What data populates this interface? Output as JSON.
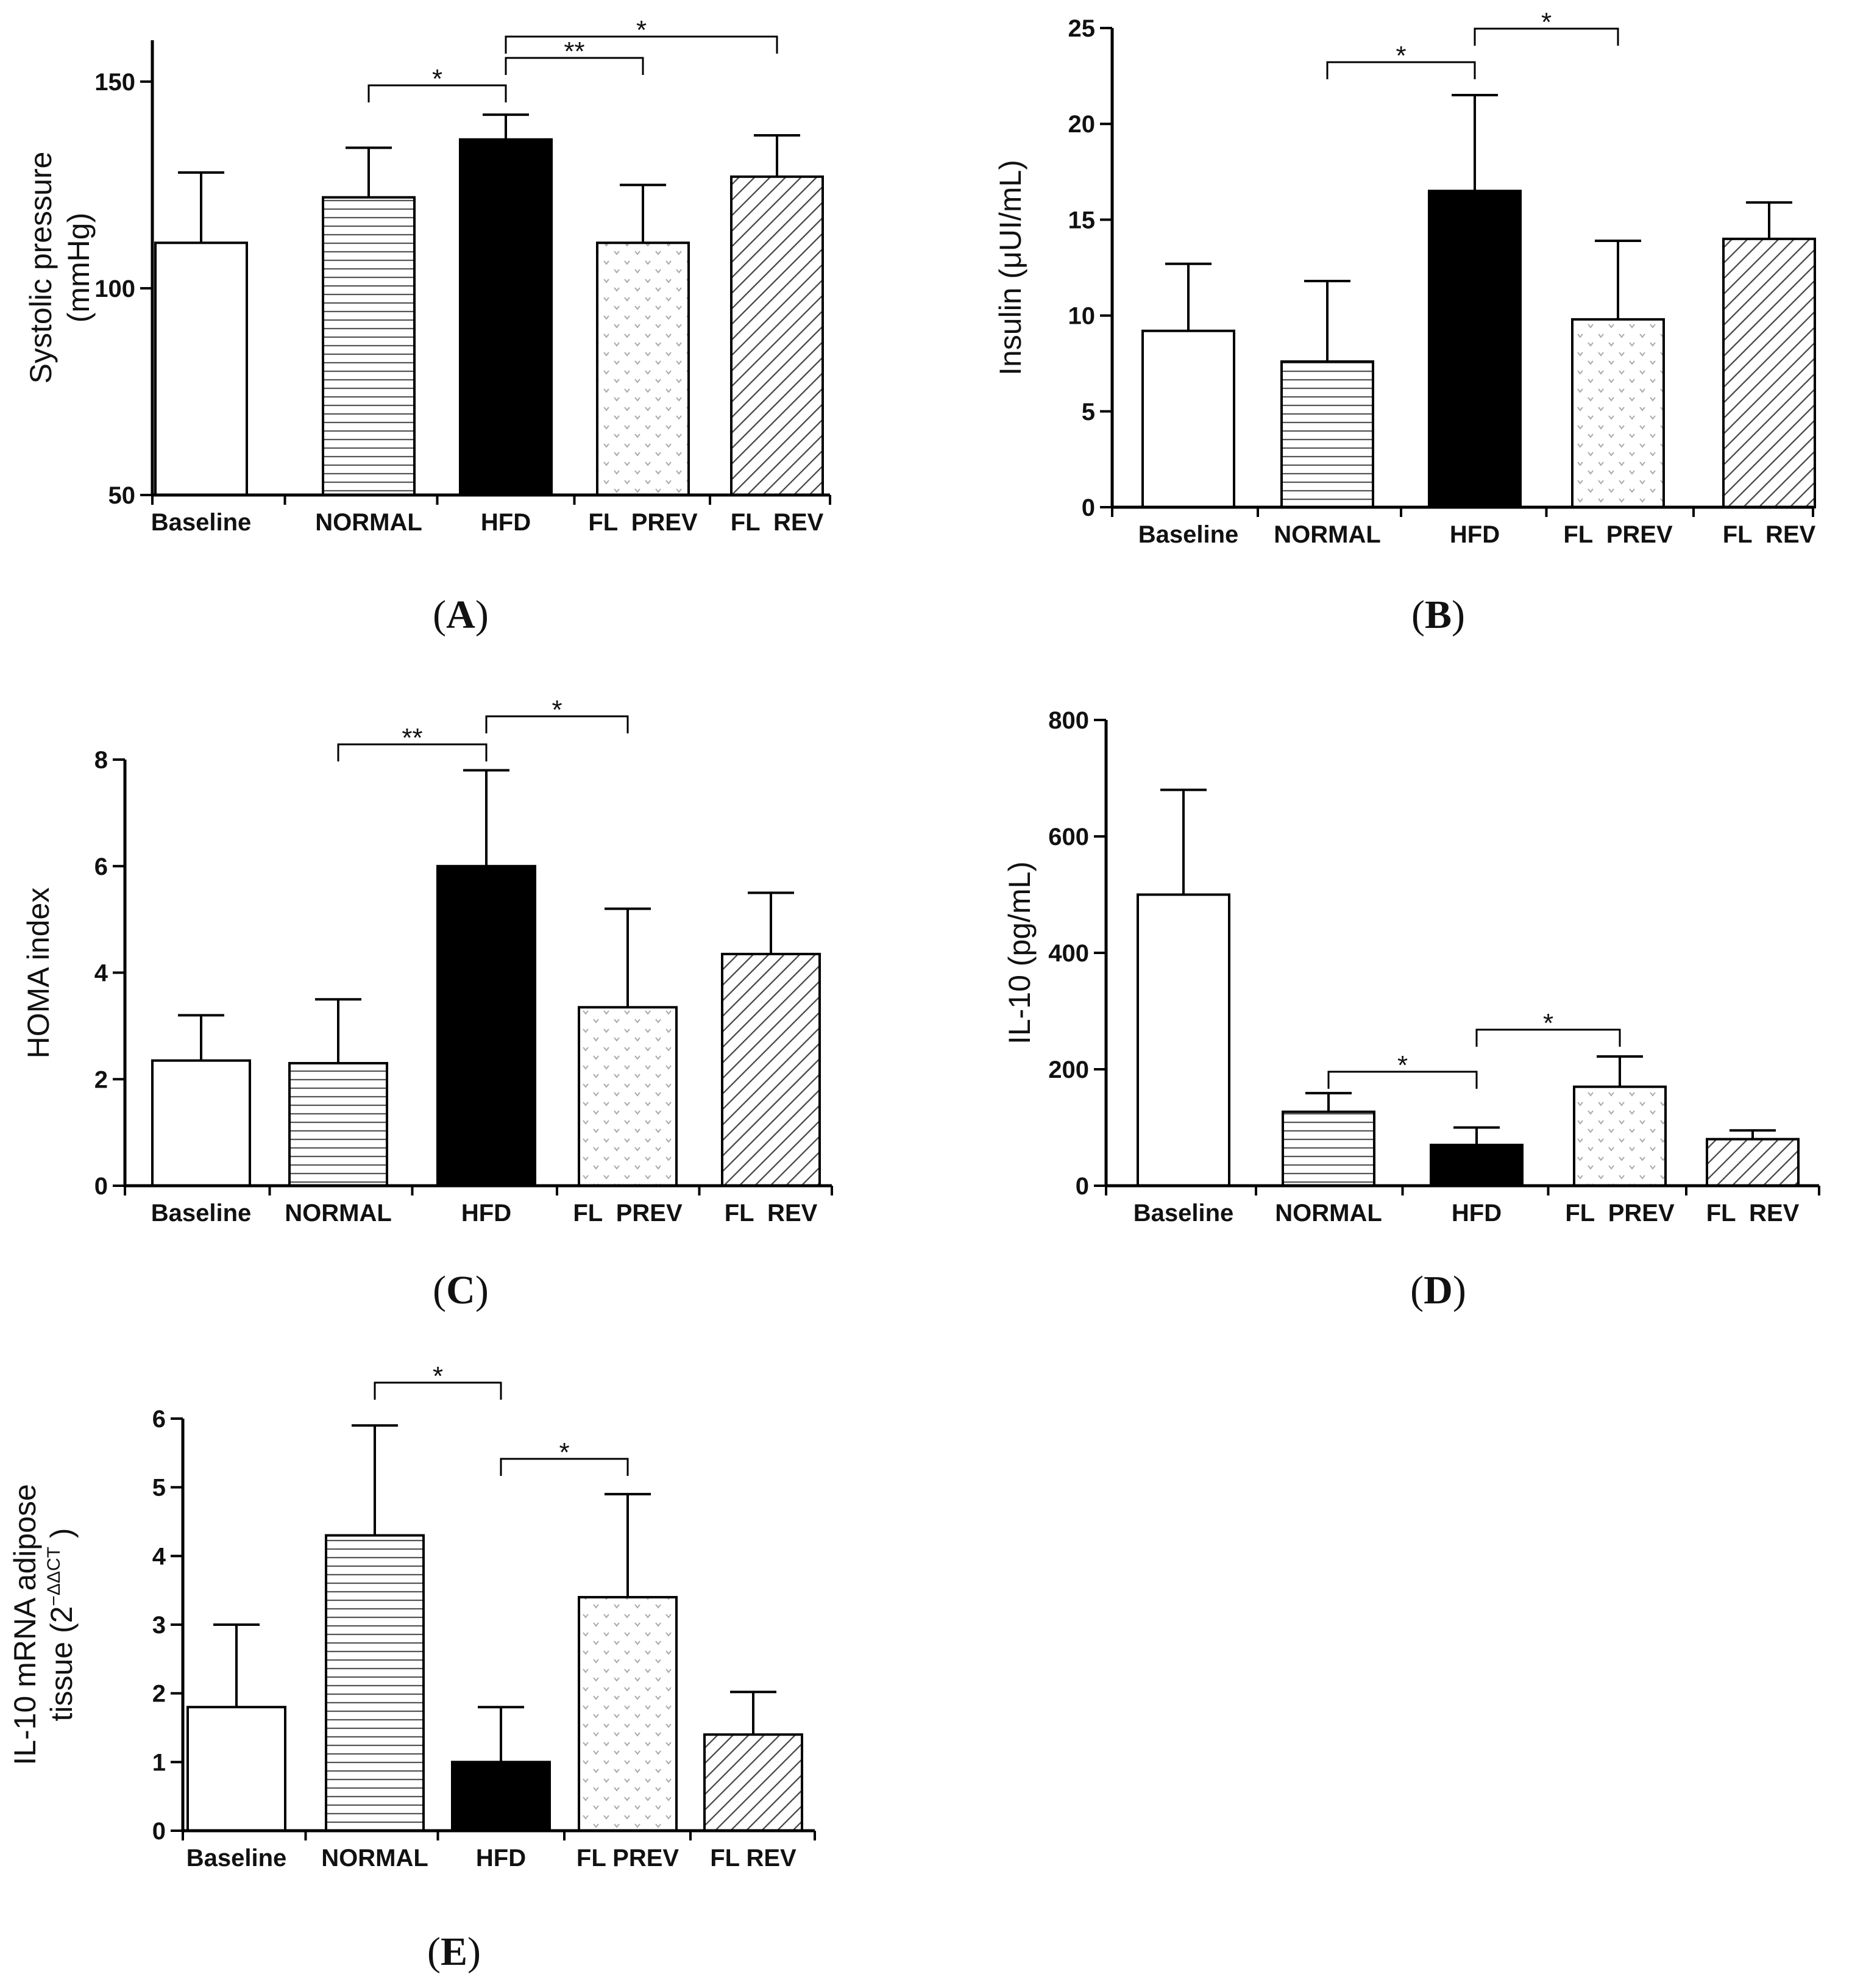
{
  "figure": {
    "categories": [
      "Baseline",
      "NORMAL",
      "HFD",
      "FL  PREV",
      "FL  REV"
    ],
    "patterns": [
      "white",
      "horizontal",
      "solid",
      "dots",
      "diagonal"
    ]
  },
  "chart_data": [
    {
      "panel": "A",
      "panel_label": {
        "open": "(",
        "letter": "A",
        "close": ")"
      },
      "type": "bar",
      "categories": [
        "Baseline",
        "NORMAL",
        "HFD",
        "FL  PREV",
        "FL  REV"
      ],
      "values": [
        111,
        122,
        136,
        111,
        127
      ],
      "errors": [
        17,
        12,
        6,
        14,
        10
      ],
      "ylabel": [
        "Systolic pressure",
        "(mmHg)"
      ],
      "ylim": [
        50,
        160
      ],
      "yticks": [
        50,
        100,
        150
      ],
      "significance": [
        {
          "from": 1,
          "to": 2,
          "label": "*"
        },
        {
          "from": 2,
          "to": 3,
          "label": "**"
        },
        {
          "from": 2,
          "to": 4,
          "label": "*"
        }
      ]
    },
    {
      "panel": "B",
      "panel_label": {
        "open": "(",
        "letter": "B",
        "close": ")"
      },
      "type": "bar",
      "categories": [
        "Baseline",
        "NORMAL",
        "HFD",
        "FL  PREV",
        "FL  REV"
      ],
      "values": [
        9.2,
        7.6,
        16.5,
        9.8,
        14.0
      ],
      "errors": [
        3.5,
        4.2,
        5.0,
        4.1,
        1.9
      ],
      "ylabel": [
        "Insulin (μUI/mL)"
      ],
      "ylim": [
        0,
        25
      ],
      "yticks": [
        0,
        5,
        10,
        15,
        20,
        25
      ],
      "significance": [
        {
          "from": 1,
          "to": 2,
          "label": "*"
        },
        {
          "from": 2,
          "to": 3,
          "label": "*"
        }
      ]
    },
    {
      "panel": "C",
      "panel_label": {
        "open": "(",
        "letter": "C",
        "close": ")"
      },
      "type": "bar",
      "categories": [
        "Baseline",
        "NORMAL",
        "HFD",
        "FL  PREV",
        "FL  REV"
      ],
      "values": [
        2.35,
        2.3,
        6.0,
        3.35,
        4.35
      ],
      "errors": [
        0.85,
        1.2,
        1.8,
        1.85,
        1.15
      ],
      "ylabel": [
        "HOMA index"
      ],
      "ylim": [
        0,
        8
      ],
      "yticks": [
        0,
        2,
        4,
        6,
        8
      ],
      "significance": [
        {
          "from": 1,
          "to": 2,
          "label": "**"
        },
        {
          "from": 2,
          "to": 3,
          "label": "*"
        }
      ]
    },
    {
      "panel": "D",
      "panel_label": {
        "open": "(",
        "letter": "D",
        "close": ")"
      },
      "type": "bar",
      "categories": [
        "Baseline",
        "NORMAL",
        "HFD",
        "FL  PREV",
        "FL  REV"
      ],
      "values": [
        500,
        127,
        70,
        170,
        80
      ],
      "errors": [
        180,
        32,
        30,
        52,
        15
      ],
      "ylabel": [
        "IL-10 (pg/mL)"
      ],
      "ylim": [
        0,
        800
      ],
      "yticks": [
        0,
        200,
        400,
        600,
        800
      ],
      "significance": [
        {
          "from": 1,
          "to": 2,
          "label": "*"
        },
        {
          "from": 2,
          "to": 3,
          "label": "*"
        }
      ]
    },
    {
      "panel": "E",
      "panel_label": {
        "open": "(",
        "letter": "E",
        "close": ")"
      },
      "type": "bar",
      "categories": [
        "Baseline",
        "NORMAL",
        "HFD",
        "FL PREV",
        "FL REV"
      ],
      "values": [
        1.8,
        4.3,
        1.0,
        3.4,
        1.4
      ],
      "errors": [
        1.2,
        1.6,
        0.8,
        1.5,
        0.62
      ],
      "ylabel": [
        "IL-10 mRNA adipose",
        "tissue (2",
        "−ΔΔCT",
        " )"
      ],
      "ylim": [
        0,
        6
      ],
      "yticks": [
        0,
        1,
        2,
        3,
        4,
        5,
        6
      ],
      "significance": [
        {
          "from": 1,
          "to": 2,
          "label": "*"
        },
        {
          "from": 2,
          "to": 3,
          "label": "*"
        }
      ]
    }
  ]
}
